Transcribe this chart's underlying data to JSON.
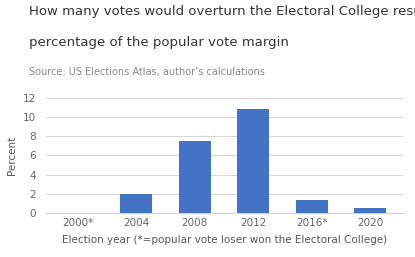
{
  "title_line1": "How many votes would overturn the Electoral College result, as a",
  "title_line2": "percentage of the popular vote margin",
  "subtitle": "Source: US Elections Atlas, author’s calculations",
  "xlabel": "Election year (*=popular vote loser won the Electoral College)",
  "ylabel": "Percent",
  "categories": [
    "2000*",
    "2004",
    "2008",
    "2012",
    "2016*",
    "2020"
  ],
  "values": [
    0.05,
    2.0,
    7.5,
    10.8,
    1.4,
    0.5
  ],
  "bar_color": "#4472C4",
  "ylim": [
    0,
    12
  ],
  "yticks": [
    0,
    2,
    4,
    6,
    8,
    10,
    12
  ],
  "background_color": "#ffffff",
  "grid_color": "#d0d0d0",
  "title_fontsize": 9.5,
  "subtitle_fontsize": 7.0,
  "axis_label_fontsize": 7.5,
  "tick_fontsize": 7.5,
  "title_color": "#333333",
  "subtitle_color": "#888888",
  "tick_color": "#666666",
  "label_color": "#555555"
}
